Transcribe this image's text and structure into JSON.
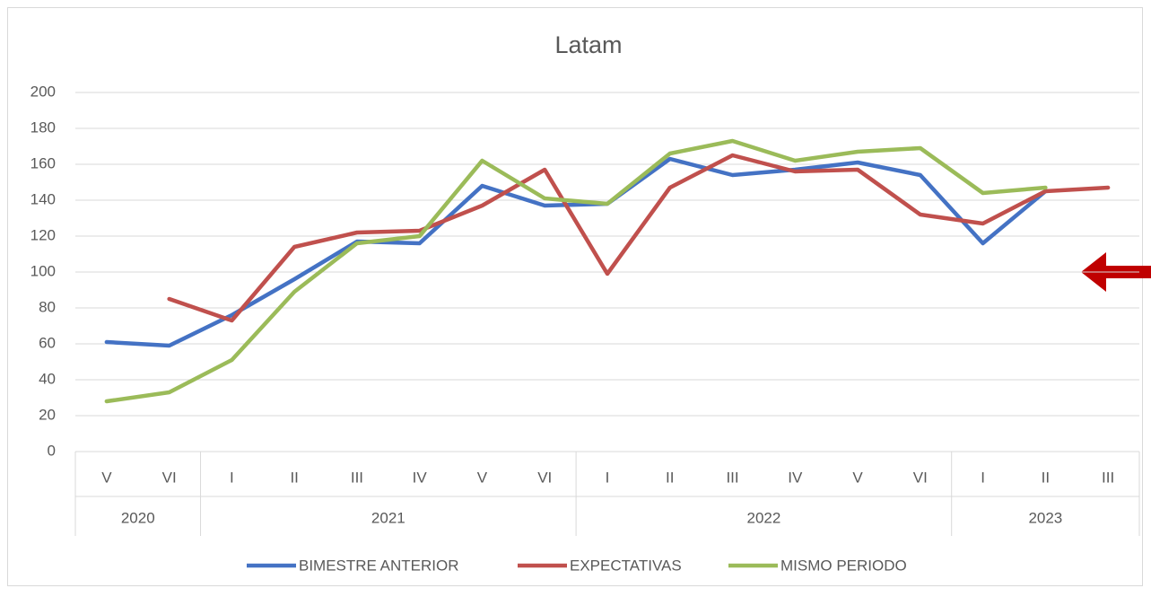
{
  "chart_data": {
    "type": "line",
    "title": "Latam",
    "categories": [
      "V",
      "VI",
      "I",
      "II",
      "III",
      "IV",
      "V",
      "VI",
      "I",
      "II",
      "III",
      "IV",
      "V",
      "VI",
      "I",
      "II",
      "III"
    ],
    "category_years": [
      "2020",
      "2020",
      "2021",
      "2021",
      "2021",
      "2021",
      "2021",
      "2021",
      "2022",
      "2022",
      "2022",
      "2022",
      "2022",
      "2022",
      "2023",
      "2023",
      "2023"
    ],
    "series": [
      {
        "name": "BIMESTRE ANTERIOR",
        "color": "#4472c4",
        "values": [
          61,
          59,
          76,
          96,
          117,
          116,
          148,
          137,
          138,
          163,
          154,
          157,
          161,
          154,
          116,
          145,
          null
        ]
      },
      {
        "name": "EXPECTATIVAS",
        "color": "#c0504d",
        "values": [
          null,
          85,
          73,
          114,
          122,
          123,
          137,
          157,
          99,
          147,
          165,
          156,
          157,
          132,
          127,
          145,
          147
        ]
      },
      {
        "name": "MISMO PERIODO",
        "color": "#9bbb59",
        "values": [
          28,
          33,
          51,
          89,
          116,
          120,
          162,
          141,
          138,
          166,
          173,
          162,
          167,
          169,
          144,
          147,
          null
        ]
      }
    ],
    "ylim": [
      0,
      200
    ],
    "yticks": [
      0,
      20,
      40,
      60,
      80,
      100,
      120,
      140,
      160,
      180,
      200
    ],
    "grid": true,
    "legend": "bottom"
  }
}
